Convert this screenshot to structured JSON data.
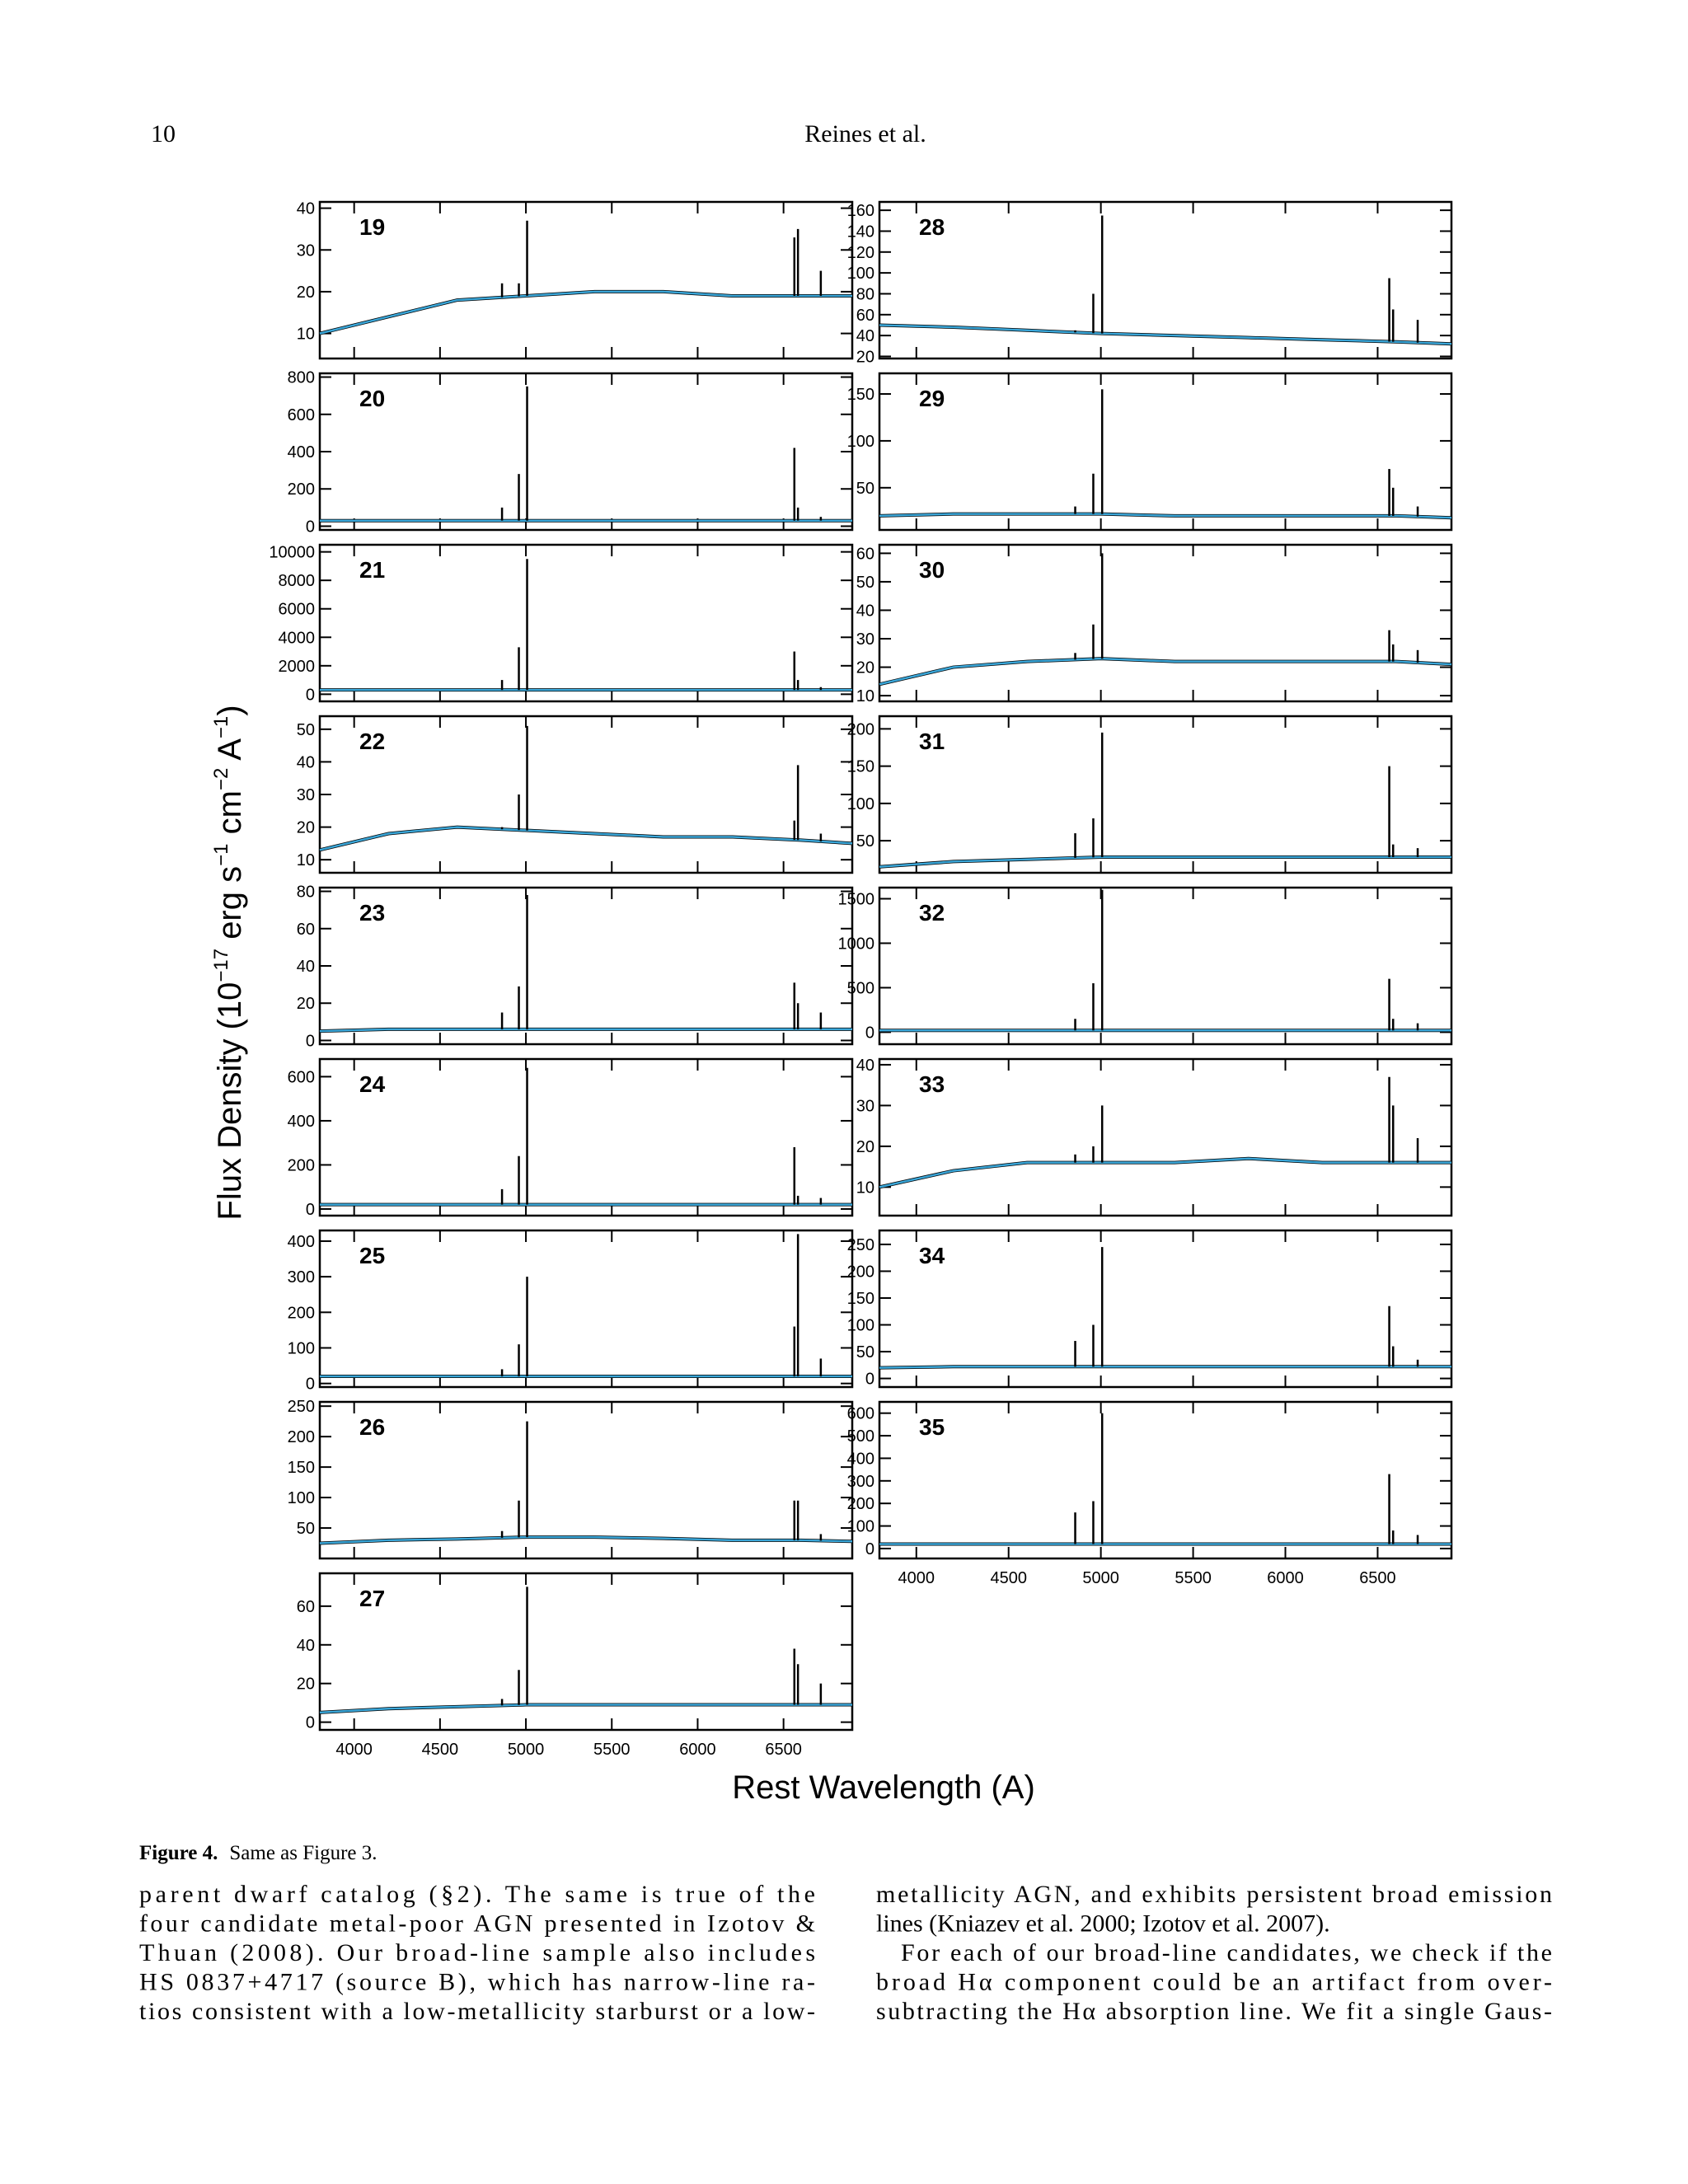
{
  "header": {
    "page_number": "10",
    "running_title": "Reines et al."
  },
  "figure": {
    "y_label": [
      "Flux Density (10",
      "−17",
      " erg s",
      "−1",
      " cm",
      "−2",
      " A",
      "−1",
      ")"
    ],
    "x_label": "Rest Wavelength (A)",
    "xlim": [
      3800,
      6900
    ],
    "xticks": [
      4000,
      4500,
      5000,
      5500,
      6000,
      6500
    ],
    "continuum_x": [
      3800,
      4200,
      4600,
      5000,
      5400,
      5800,
      6200,
      6600,
      6900
    ],
    "line_x": [
      4861,
      4959,
      5007,
      6563,
      6584,
      6717
    ],
    "data_color": "#000000",
    "model_color": "#3aa6d8",
    "panels": [
      {
        "label": "19",
        "ylim": [
          4,
          41.5
        ],
        "yticks": [
          10,
          20,
          30,
          40
        ],
        "continuum": [
          10,
          14,
          18,
          19,
          20,
          20,
          19,
          19,
          19
        ],
        "lines": [
          22,
          22,
          37,
          33,
          35,
          25
        ]
      },
      {
        "label": "20",
        "ylim": [
          -20,
          820
        ],
        "yticks": [
          0,
          200,
          400,
          600,
          800
        ],
        "continuum": [
          30,
          30,
          30,
          30,
          30,
          30,
          30,
          30,
          30
        ],
        "lines": [
          100,
          280,
          750,
          420,
          100,
          50
        ]
      },
      {
        "label": "21",
        "ylim": [
          -500,
          10500
        ],
        "yticks": [
          0,
          2000,
          4000,
          6000,
          8000,
          10000
        ],
        "continuum": [
          300,
          300,
          300,
          300,
          300,
          300,
          300,
          300,
          300
        ],
        "lines": [
          1000,
          3300,
          9500,
          3000,
          1000,
          500
        ]
      },
      {
        "label": "22",
        "ylim": [
          6,
          54
        ],
        "yticks": [
          10,
          20,
          30,
          40,
          50
        ],
        "continuum": [
          13,
          18,
          20,
          19,
          18,
          17,
          17,
          16,
          15
        ],
        "lines": [
          20,
          30,
          51,
          22,
          39,
          18
        ]
      },
      {
        "label": "23",
        "ylim": [
          -2,
          82
        ],
        "yticks": [
          0,
          20,
          40,
          60,
          80
        ],
        "continuum": [
          5,
          6,
          6,
          6,
          6,
          6,
          6,
          6,
          6
        ],
        "lines": [
          15,
          29,
          78,
          31,
          20,
          15
        ]
      },
      {
        "label": "24",
        "ylim": [
          -30,
          680
        ],
        "yticks": [
          0,
          200,
          400,
          600
        ],
        "continuum": [
          20,
          20,
          20,
          20,
          20,
          20,
          20,
          20,
          20
        ],
        "lines": [
          90,
          240,
          640,
          280,
          60,
          50
        ]
      },
      {
        "label": "25",
        "ylim": [
          -10,
          430
        ],
        "yticks": [
          0,
          100,
          200,
          300,
          400
        ],
        "continuum": [
          20,
          20,
          20,
          20,
          20,
          20,
          20,
          20,
          20
        ],
        "lines": [
          40,
          110,
          300,
          160,
          420,
          70
        ]
      },
      {
        "label": "26",
        "ylim": [
          0,
          257
        ],
        "yticks": [
          50,
          100,
          150,
          200,
          250
        ],
        "continuum": [
          25,
          30,
          32,
          35,
          35,
          33,
          30,
          30,
          28
        ],
        "lines": [
          45,
          95,
          225,
          95,
          95,
          40
        ]
      },
      {
        "label": "27",
        "ylim": [
          -4,
          77
        ],
        "yticks": [
          0,
          20,
          40,
          60
        ],
        "continuum": [
          5,
          7,
          8,
          9,
          9,
          9,
          9,
          9,
          9
        ],
        "lines": [
          12,
          27,
          70,
          38,
          30,
          20
        ]
      },
      {
        "label": "28",
        "ylim": [
          18,
          168
        ],
        "yticks": [
          20,
          40,
          60,
          80,
          100,
          120,
          140,
          160
        ],
        "continuum": [
          50,
          48,
          45,
          42,
          40,
          38,
          36,
          34,
          32
        ],
        "lines": [
          45,
          80,
          155,
          95,
          65,
          55
        ]
      },
      {
        "label": "29",
        "ylim": [
          5,
          172
        ],
        "yticks": [
          50,
          100,
          150
        ],
        "continuum": [
          20,
          22,
          22,
          22,
          20,
          20,
          20,
          20,
          18
        ],
        "lines": [
          30,
          65,
          155,
          70,
          50,
          30
        ]
      },
      {
        "label": "30",
        "ylim": [
          8,
          63
        ],
        "yticks": [
          10,
          20,
          30,
          40,
          50,
          60
        ],
        "continuum": [
          14,
          20,
          22,
          23,
          22,
          22,
          22,
          22,
          21
        ],
        "lines": [
          25,
          35,
          60,
          33,
          28,
          26
        ]
      },
      {
        "label": "31",
        "ylim": [
          7,
          217
        ],
        "yticks": [
          50,
          100,
          150,
          200
        ],
        "continuum": [
          15,
          22,
          25,
          28,
          28,
          28,
          28,
          28,
          28
        ],
        "lines": [
          60,
          80,
          195,
          150,
          45,
          40
        ]
      },
      {
        "label": "32",
        "ylim": [
          -135,
          1625
        ],
        "yticks": [
          0,
          500,
          1000,
          1500
        ],
        "continuum": [
          20,
          20,
          20,
          20,
          20,
          20,
          20,
          20,
          20
        ],
        "lines": [
          150,
          550,
          1600,
          600,
          150,
          100
        ]
      },
      {
        "label": "33",
        "ylim": [
          3,
          41.4
        ],
        "yticks": [
          10,
          20,
          30,
          40
        ],
        "continuum": [
          10,
          14,
          16,
          16,
          16,
          17,
          16,
          16,
          16
        ],
        "lines": [
          18,
          20,
          30,
          37,
          30,
          22
        ]
      },
      {
        "label": "34",
        "ylim": [
          -16,
          276
        ],
        "yticks": [
          0,
          50,
          100,
          150,
          200,
          250
        ],
        "continuum": [
          20,
          22,
          22,
          22,
          22,
          22,
          22,
          22,
          22
        ],
        "lines": [
          70,
          100,
          245,
          135,
          60,
          35
        ]
      },
      {
        "label": "35",
        "ylim": [
          -44,
          650
        ],
        "yticks": [
          0,
          100,
          200,
          300,
          400,
          500,
          600
        ],
        "continuum": [
          20,
          20,
          20,
          20,
          20,
          20,
          20,
          20,
          20
        ],
        "lines": [
          160,
          210,
          600,
          330,
          80,
          60
        ]
      }
    ]
  },
  "caption": {
    "label": "Figure 4.",
    "text": "Same as Figure 3."
  },
  "body": {
    "left": [
      "parent dwarf catalog (§2).   The same is true of the",
      "four candidate metal-poor AGN presented in Izotov &",
      "Thuan (2008).   Our broad-line sample also includes",
      "HS 0837+4717 (source B), which has narrow-line ra-",
      "tios consistent with a low-metallicity starburst or a low-"
    ],
    "right": [
      "metallicity AGN, and exhibits persistent broad emission",
      "lines (Kniazev et al. 2000; Izotov et al. 2007).",
      "For each of our broad-line candidates, we check if the",
      "broad Hα component could be an artifact from over-",
      "subtracting the Hα absorption line.  We fit a single Gaus-"
    ]
  }
}
